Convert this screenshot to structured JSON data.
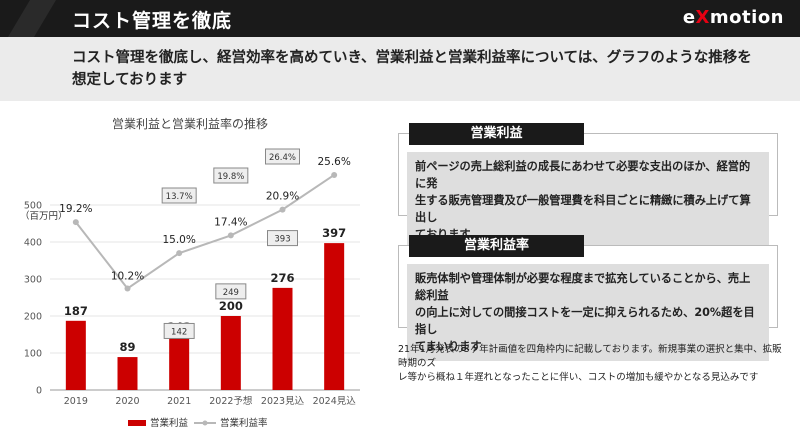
{
  "header": {
    "title": "コスト管理を徹底",
    "logo_pre": "e",
    "logo_x": "X",
    "logo_post": "motion"
  },
  "lead": {
    "line1": "コスト管理を徹底し、経営効率を高めていき、営業利益と営業利益率については、グラフのような推移を",
    "line2": "想定しております"
  },
  "colors": {
    "bar": "#cc0000",
    "line": "#b8b8b8",
    "header_bg": "#1a1a1a",
    "accent": "#e60012"
  },
  "chart_data": {
    "type": "bar",
    "title": "営業利益と営業利益率の推移",
    "ylabel": "（百万円）",
    "ylim": [
      0,
      600
    ],
    "yticks": [
      0,
      100,
      200,
      300,
      400,
      500
    ],
    "categories": [
      "2019",
      "2020",
      "2021",
      "2022予想",
      "2023見込",
      "2024見込"
    ],
    "series": [
      {
        "name": "営業利益",
        "type": "bar",
        "values": [
          187,
          89,
          143,
          200,
          276,
          397
        ]
      },
      {
        "name": "営業利益率",
        "type": "line",
        "values": [
          19.2,
          10.2,
          15.0,
          17.4,
          20.9,
          25.6
        ],
        "labels": [
          "19.2%",
          "10.2%",
          "15.0%",
          "17.4%",
          "20.9%",
          "25.6%"
        ]
      }
    ],
    "plan_boxes": {
      "profit": [
        null,
        null,
        142,
        249,
        393,
        null
      ],
      "rate": [
        null,
        null,
        "13.7%",
        "19.8%",
        "26.4%",
        null
      ]
    },
    "legend": {
      "placement": "bottom",
      "entries": [
        "営業利益",
        "営業利益率"
      ]
    }
  },
  "cards": [
    {
      "title": "営業利益",
      "lines": [
        "前ページの売上総利益の成長にあわせて必要な支出のほか、経営的に発",
        "生する販売管理費及び一般管理費を科目ごとに精緻に積み上げて算出し",
        "ております"
      ]
    },
    {
      "title": "営業利益率",
      "lines": [
        "販売体制や管理体制が必要な程度まで拡充していることから、売上総利益",
        "の向上に対しての間接コストを一定に抑えられるため、20%超を目指し",
        "てまいります"
      ]
    }
  ],
  "note": {
    "line1": "21年1月発表の3ヶ年計画値を四角枠内に記載しております。新規事業の選択と集中、拡販時期のズ",
    "line2": "レ等から概ね１年遅れとなったことに伴い、コストの増加も緩やかとなる見込みです"
  }
}
